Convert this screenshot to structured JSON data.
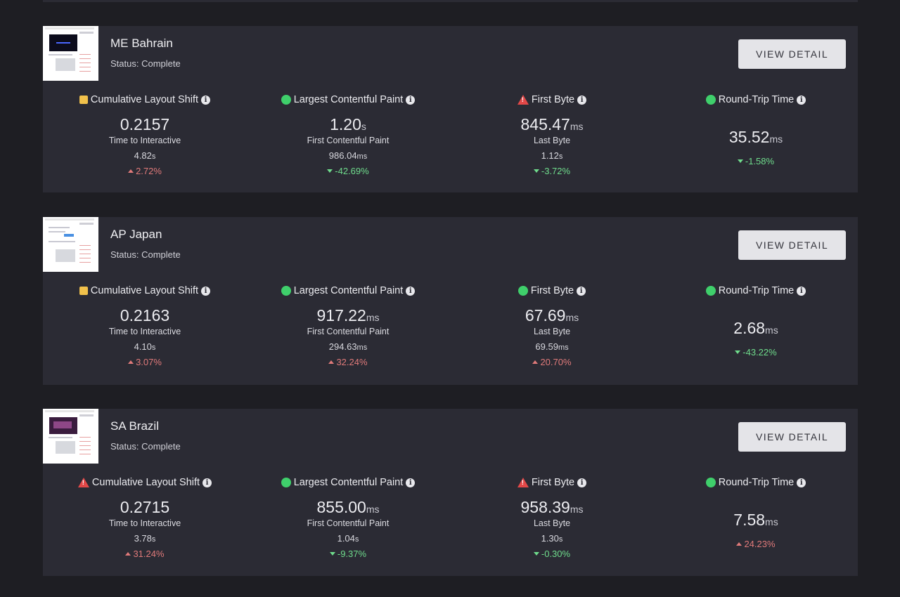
{
  "button_label": "VIEW DETAIL",
  "colors": {
    "background": "#1e1e23",
    "card": "#2b2b34",
    "good": "#3fcf6b",
    "needs_improvement": "#f1c14b",
    "poor": "#e24848",
    "increase": "#e07a7a",
    "decrease": "#6fdc8c"
  },
  "cards": [
    {
      "name": "ME Bahrain",
      "status": "Status: Complete",
      "metrics": [
        {
          "label": "Cumulative Layout Shift",
          "indicator": "needs-improvement-square-icon",
          "value": "0.2157",
          "unit": "",
          "sublabel": "Time to Interactive",
          "subvalue": "4.82",
          "subunit": "s",
          "delta": "2.72%",
          "direction": "up"
        },
        {
          "label": "Largest Contentful Paint",
          "indicator": "good-circle-icon",
          "value": "1.20",
          "unit": "s",
          "sublabel": "First Contentful Paint",
          "subvalue": "986.04",
          "subunit": "ms",
          "delta": "-42.69%",
          "direction": "down"
        },
        {
          "label": "First Byte",
          "indicator": "warning-triangle-icon",
          "value": "845.47",
          "unit": "ms",
          "sublabel": "Last Byte",
          "subvalue": "1.12",
          "subunit": "s",
          "delta": "-3.72%",
          "direction": "down"
        },
        {
          "label": "Round-Trip Time",
          "indicator": "good-circle-icon",
          "value": "35.52",
          "unit": "ms",
          "sublabel": "",
          "subvalue": "",
          "subunit": "",
          "delta": "-1.58%",
          "direction": "down"
        }
      ]
    },
    {
      "name": "AP Japan",
      "status": "Status: Complete",
      "metrics": [
        {
          "label": "Cumulative Layout Shift",
          "indicator": "needs-improvement-square-icon",
          "value": "0.2163",
          "unit": "",
          "sublabel": "Time to Interactive",
          "subvalue": "4.10",
          "subunit": "s",
          "delta": "3.07%",
          "direction": "up"
        },
        {
          "label": "Largest Contentful Paint",
          "indicator": "good-circle-icon",
          "value": "917.22",
          "unit": "ms",
          "sublabel": "First Contentful Paint",
          "subvalue": "294.63",
          "subunit": "ms",
          "delta": "32.24%",
          "direction": "up"
        },
        {
          "label": "First Byte",
          "indicator": "good-circle-icon",
          "value": "67.69",
          "unit": "ms",
          "sublabel": "Last Byte",
          "subvalue": "69.59",
          "subunit": "ms",
          "delta": "20.70%",
          "direction": "up"
        },
        {
          "label": "Round-Trip Time",
          "indicator": "good-circle-icon",
          "value": "2.68",
          "unit": "ms",
          "sublabel": "",
          "subvalue": "",
          "subunit": "",
          "delta": "-43.22%",
          "direction": "down"
        }
      ]
    },
    {
      "name": "SA Brazil",
      "status": "Status: Complete",
      "metrics": [
        {
          "label": "Cumulative Layout Shift",
          "indicator": "warning-triangle-icon",
          "value": "0.2715",
          "unit": "",
          "sublabel": "Time to Interactive",
          "subvalue": "3.78",
          "subunit": "s",
          "delta": "31.24%",
          "direction": "up"
        },
        {
          "label": "Largest Contentful Paint",
          "indicator": "good-circle-icon",
          "value": "855.00",
          "unit": "ms",
          "sublabel": "First Contentful Paint",
          "subvalue": "1.04",
          "subunit": "s",
          "delta": "-9.37%",
          "direction": "down"
        },
        {
          "label": "First Byte",
          "indicator": "warning-triangle-icon",
          "value": "958.39",
          "unit": "ms",
          "sublabel": "Last Byte",
          "subvalue": "1.30",
          "subunit": "s",
          "delta": "-0.30%",
          "direction": "down"
        },
        {
          "label": "Round-Trip Time",
          "indicator": "good-circle-icon",
          "value": "7.58",
          "unit": "ms",
          "sublabel": "",
          "subvalue": "",
          "subunit": "",
          "delta": "24.23%",
          "direction": "up"
        }
      ]
    }
  ]
}
